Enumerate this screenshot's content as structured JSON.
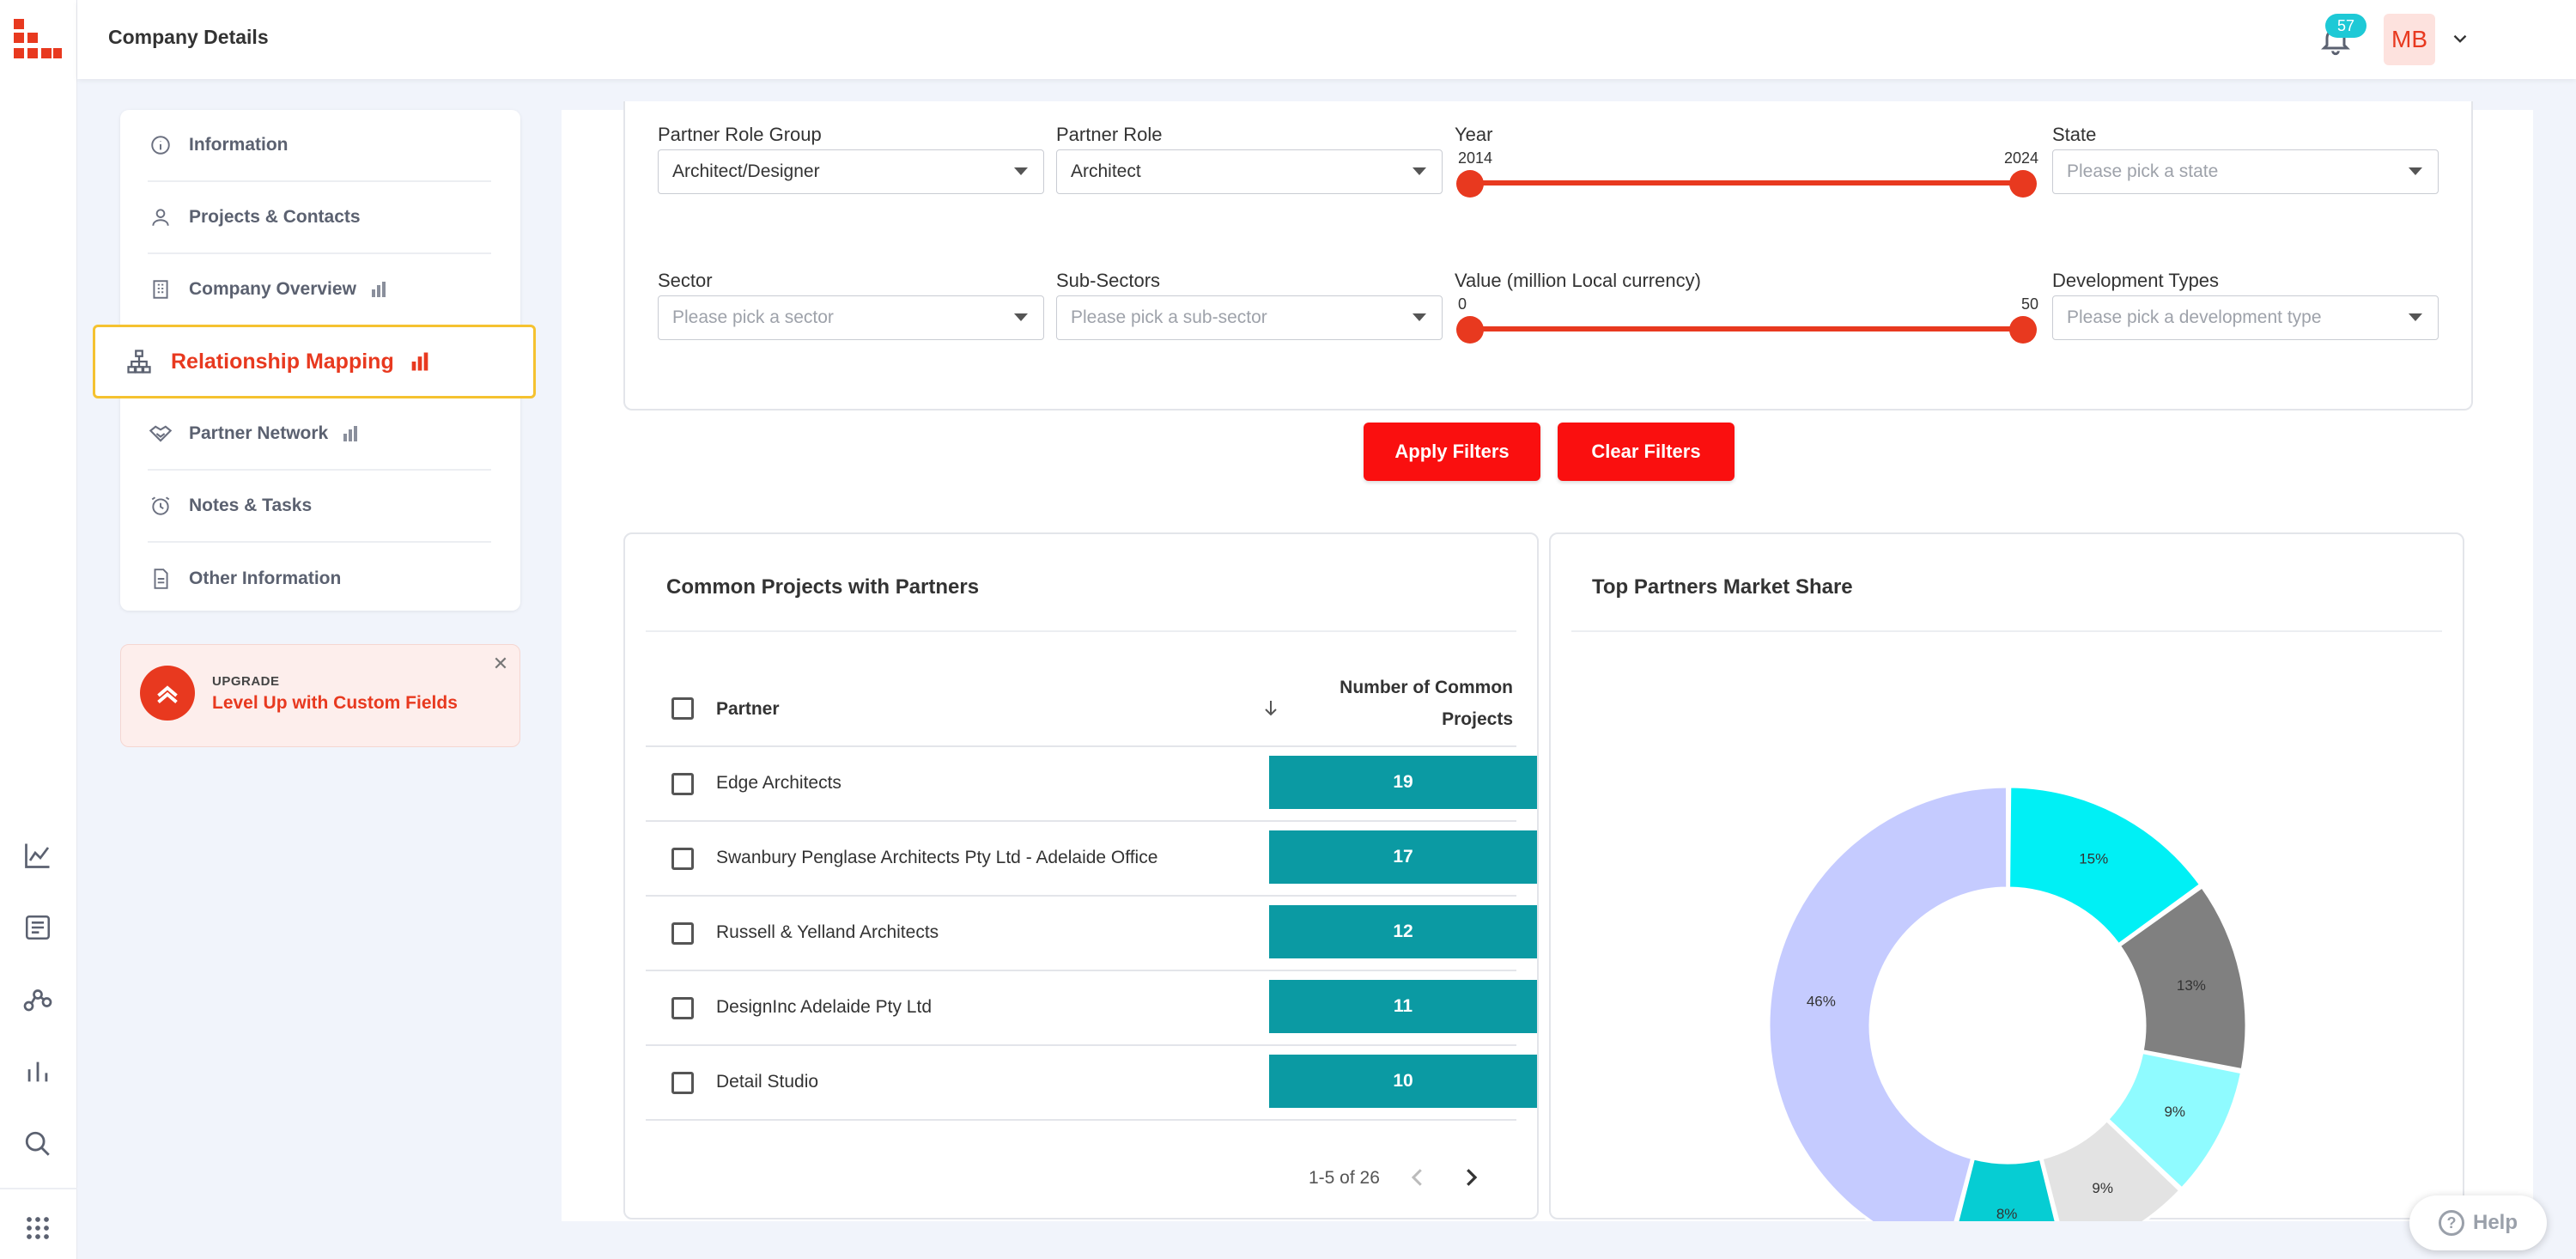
{
  "header": {
    "title": "Company Details",
    "notifications": "57",
    "avatar_initials": "MB"
  },
  "rail": {
    "icons": [
      "trend-chart-icon",
      "notes-icon",
      "network-icon",
      "bar-chart-icon",
      "search-icon",
      "apps-grid-icon"
    ]
  },
  "sidebar": {
    "items": [
      {
        "label": "Information",
        "icon": "info-icon"
      },
      {
        "label": "Projects & Contacts",
        "icon": "person-icon"
      },
      {
        "label": "Company Overview",
        "icon": "building-icon",
        "beta": true
      },
      {
        "label": "Relationship Mapping",
        "icon": "hierarchy-icon",
        "beta": true,
        "active": true
      },
      {
        "label": "Partner Network",
        "icon": "handshake-icon",
        "beta": true
      },
      {
        "label": "Notes & Tasks",
        "icon": "alarm-icon"
      },
      {
        "label": "Other Information",
        "icon": "document-icon"
      }
    ],
    "upgrade": {
      "kicker": "UPGRADE",
      "title": "Level Up with Custom Fields"
    }
  },
  "filters": {
    "partner_role_group": {
      "label": "Partner Role Group",
      "value": "Architect/Designer"
    },
    "partner_role": {
      "label": "Partner Role",
      "value": "Architect"
    },
    "year": {
      "label": "Year",
      "min": "2014",
      "max": "2024"
    },
    "state": {
      "label": "State",
      "placeholder": "Please pick a state"
    },
    "sector": {
      "label": "Sector",
      "placeholder": "Please pick a sector"
    },
    "sub_sectors": {
      "label": "Sub-Sectors",
      "placeholder": "Please pick a sub-sector"
    },
    "value": {
      "label": "Value (million Local currency)",
      "min": "0",
      "max": "50"
    },
    "development_types": {
      "label": "Development Types",
      "placeholder": "Please pick a development type"
    },
    "apply_label": "Apply Filters",
    "clear_label": "Clear Filters"
  },
  "common_projects": {
    "title": "Common Projects with Partners",
    "col_partner": "Partner",
    "col_count_line1": "Number of Common",
    "col_count_line2": "Projects",
    "rows": [
      {
        "name": "Edge Architects",
        "count": "19"
      },
      {
        "name": "Swanbury Penglase Architects Pty Ltd - Adelaide Office",
        "count": "17"
      },
      {
        "name": "Russell & Yelland Architects",
        "count": "12"
      },
      {
        "name": "DesignInc Adelaide Pty Ltd",
        "count": "11"
      },
      {
        "name": "Detail Studio",
        "count": "10"
      }
    ],
    "pagination": "1-5 of 26"
  },
  "market_share": {
    "title": "Top Partners Market Share"
  },
  "chart_data": {
    "type": "pie",
    "donut": true,
    "values": [
      15,
      13,
      9,
      9,
      8,
      46
    ],
    "labels": [
      "15%",
      "13%",
      "9%",
      "9%",
      "8%",
      "46%"
    ],
    "colors": [
      "#00f0f5",
      "#808080",
      "#8ffbff",
      "#e3e3e3",
      "#06cdd3",
      "#c5cbff"
    ]
  },
  "help_label": "Help"
}
